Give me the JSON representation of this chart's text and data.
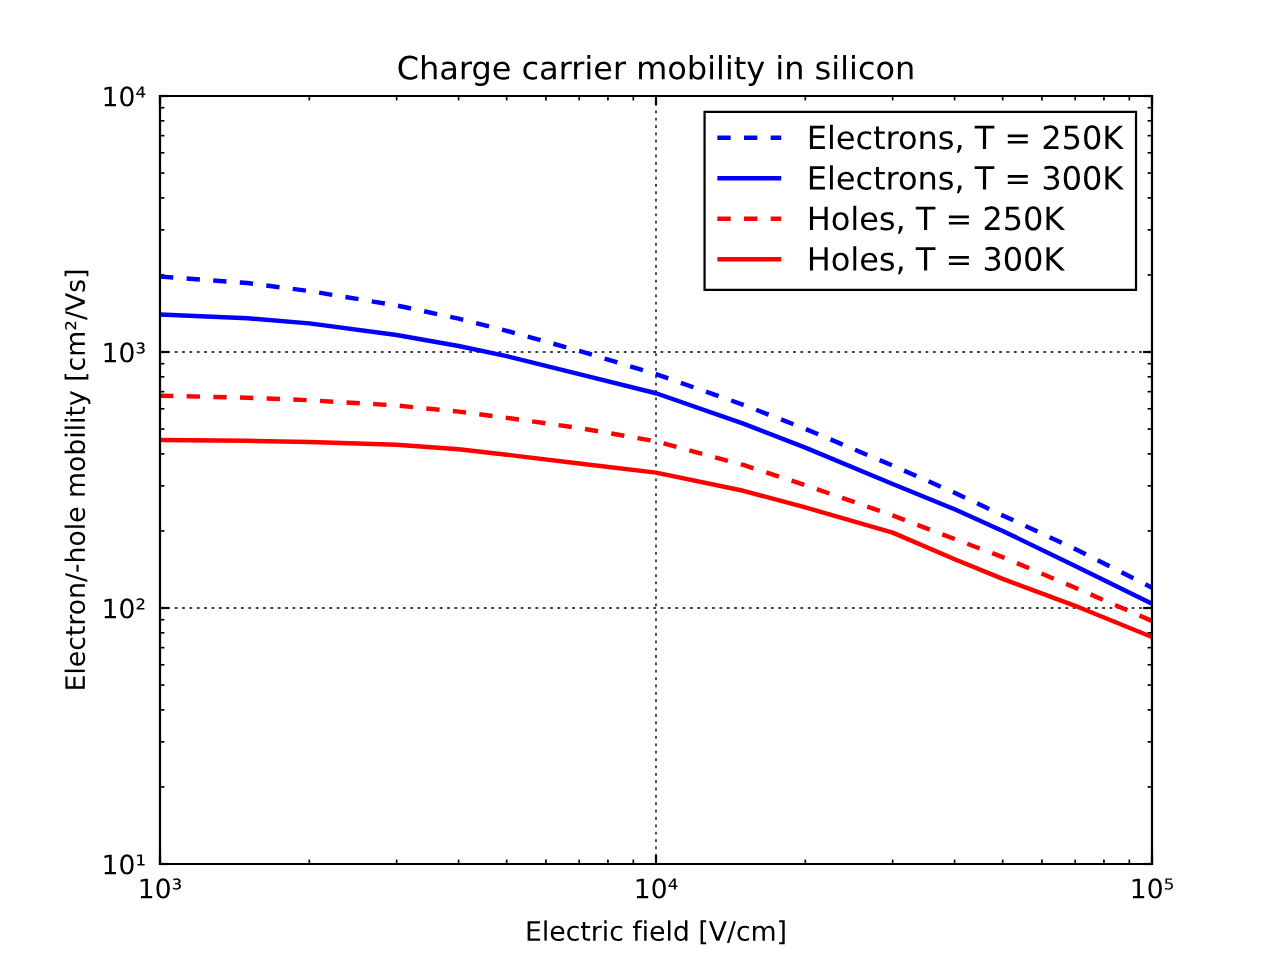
{
  "chart_data": {
    "type": "line",
    "title": "Charge carrier mobility in silicon",
    "xlabel": "Electric field [V/cm]",
    "ylabel": "Electron/-hole mobility [cm²/Vs]",
    "x": [
      1000,
      1500,
      2000,
      3000,
      4000,
      5000,
      7000,
      10000,
      15000,
      20000,
      30000,
      40000,
      50000,
      70000,
      100000
    ],
    "series": [
      {
        "name": "Electrons, T = 250K",
        "color": "#0000ff",
        "line_style": "dashed",
        "values": [
          1970,
          1860,
          1730,
          1520,
          1350,
          1210,
          1010,
          820,
          622,
          501,
          360,
          282,
          230,
          170,
          120
        ]
      },
      {
        "name": "Electrons, T = 300K",
        "color": "#0000ff",
        "line_style": "solid",
        "values": [
          1400,
          1355,
          1294,
          1165,
          1055,
          963,
          820,
          690,
          525,
          423,
          305,
          243,
          200,
          146,
          104
        ]
      },
      {
        "name": "Holes, T = 250K",
        "color": "#ff0000",
        "line_style": "dashed",
        "values": [
          675,
          663,
          648,
          618,
          585,
          553,
          505,
          448,
          362,
          302,
          230,
          186,
          158,
          120,
          89
        ]
      },
      {
        "name": "Holes, T = 300K",
        "color": "#ff0000",
        "line_style": "solid",
        "values": [
          453,
          450,
          445,
          434,
          417,
          397,
          367,
          338,
          287,
          247,
          197,
          155,
          130,
          102,
          77
        ]
      }
    ],
    "xlim": [
      1000,
      100000
    ],
    "ylim": [
      10,
      10000
    ],
    "xticks": [
      {
        "value": 1000,
        "label": "10³"
      },
      {
        "value": 10000,
        "label": "10⁴"
      },
      {
        "value": 100000,
        "label": "10⁵"
      }
    ],
    "yticks": [
      {
        "value": 10,
        "label": "10¹"
      },
      {
        "value": 100,
        "label": "10²"
      },
      {
        "value": 1000,
        "label": "10³"
      },
      {
        "value": 10000,
        "label": "10⁴"
      }
    ],
    "log": "xy",
    "grid": true,
    "legend": "top right"
  }
}
